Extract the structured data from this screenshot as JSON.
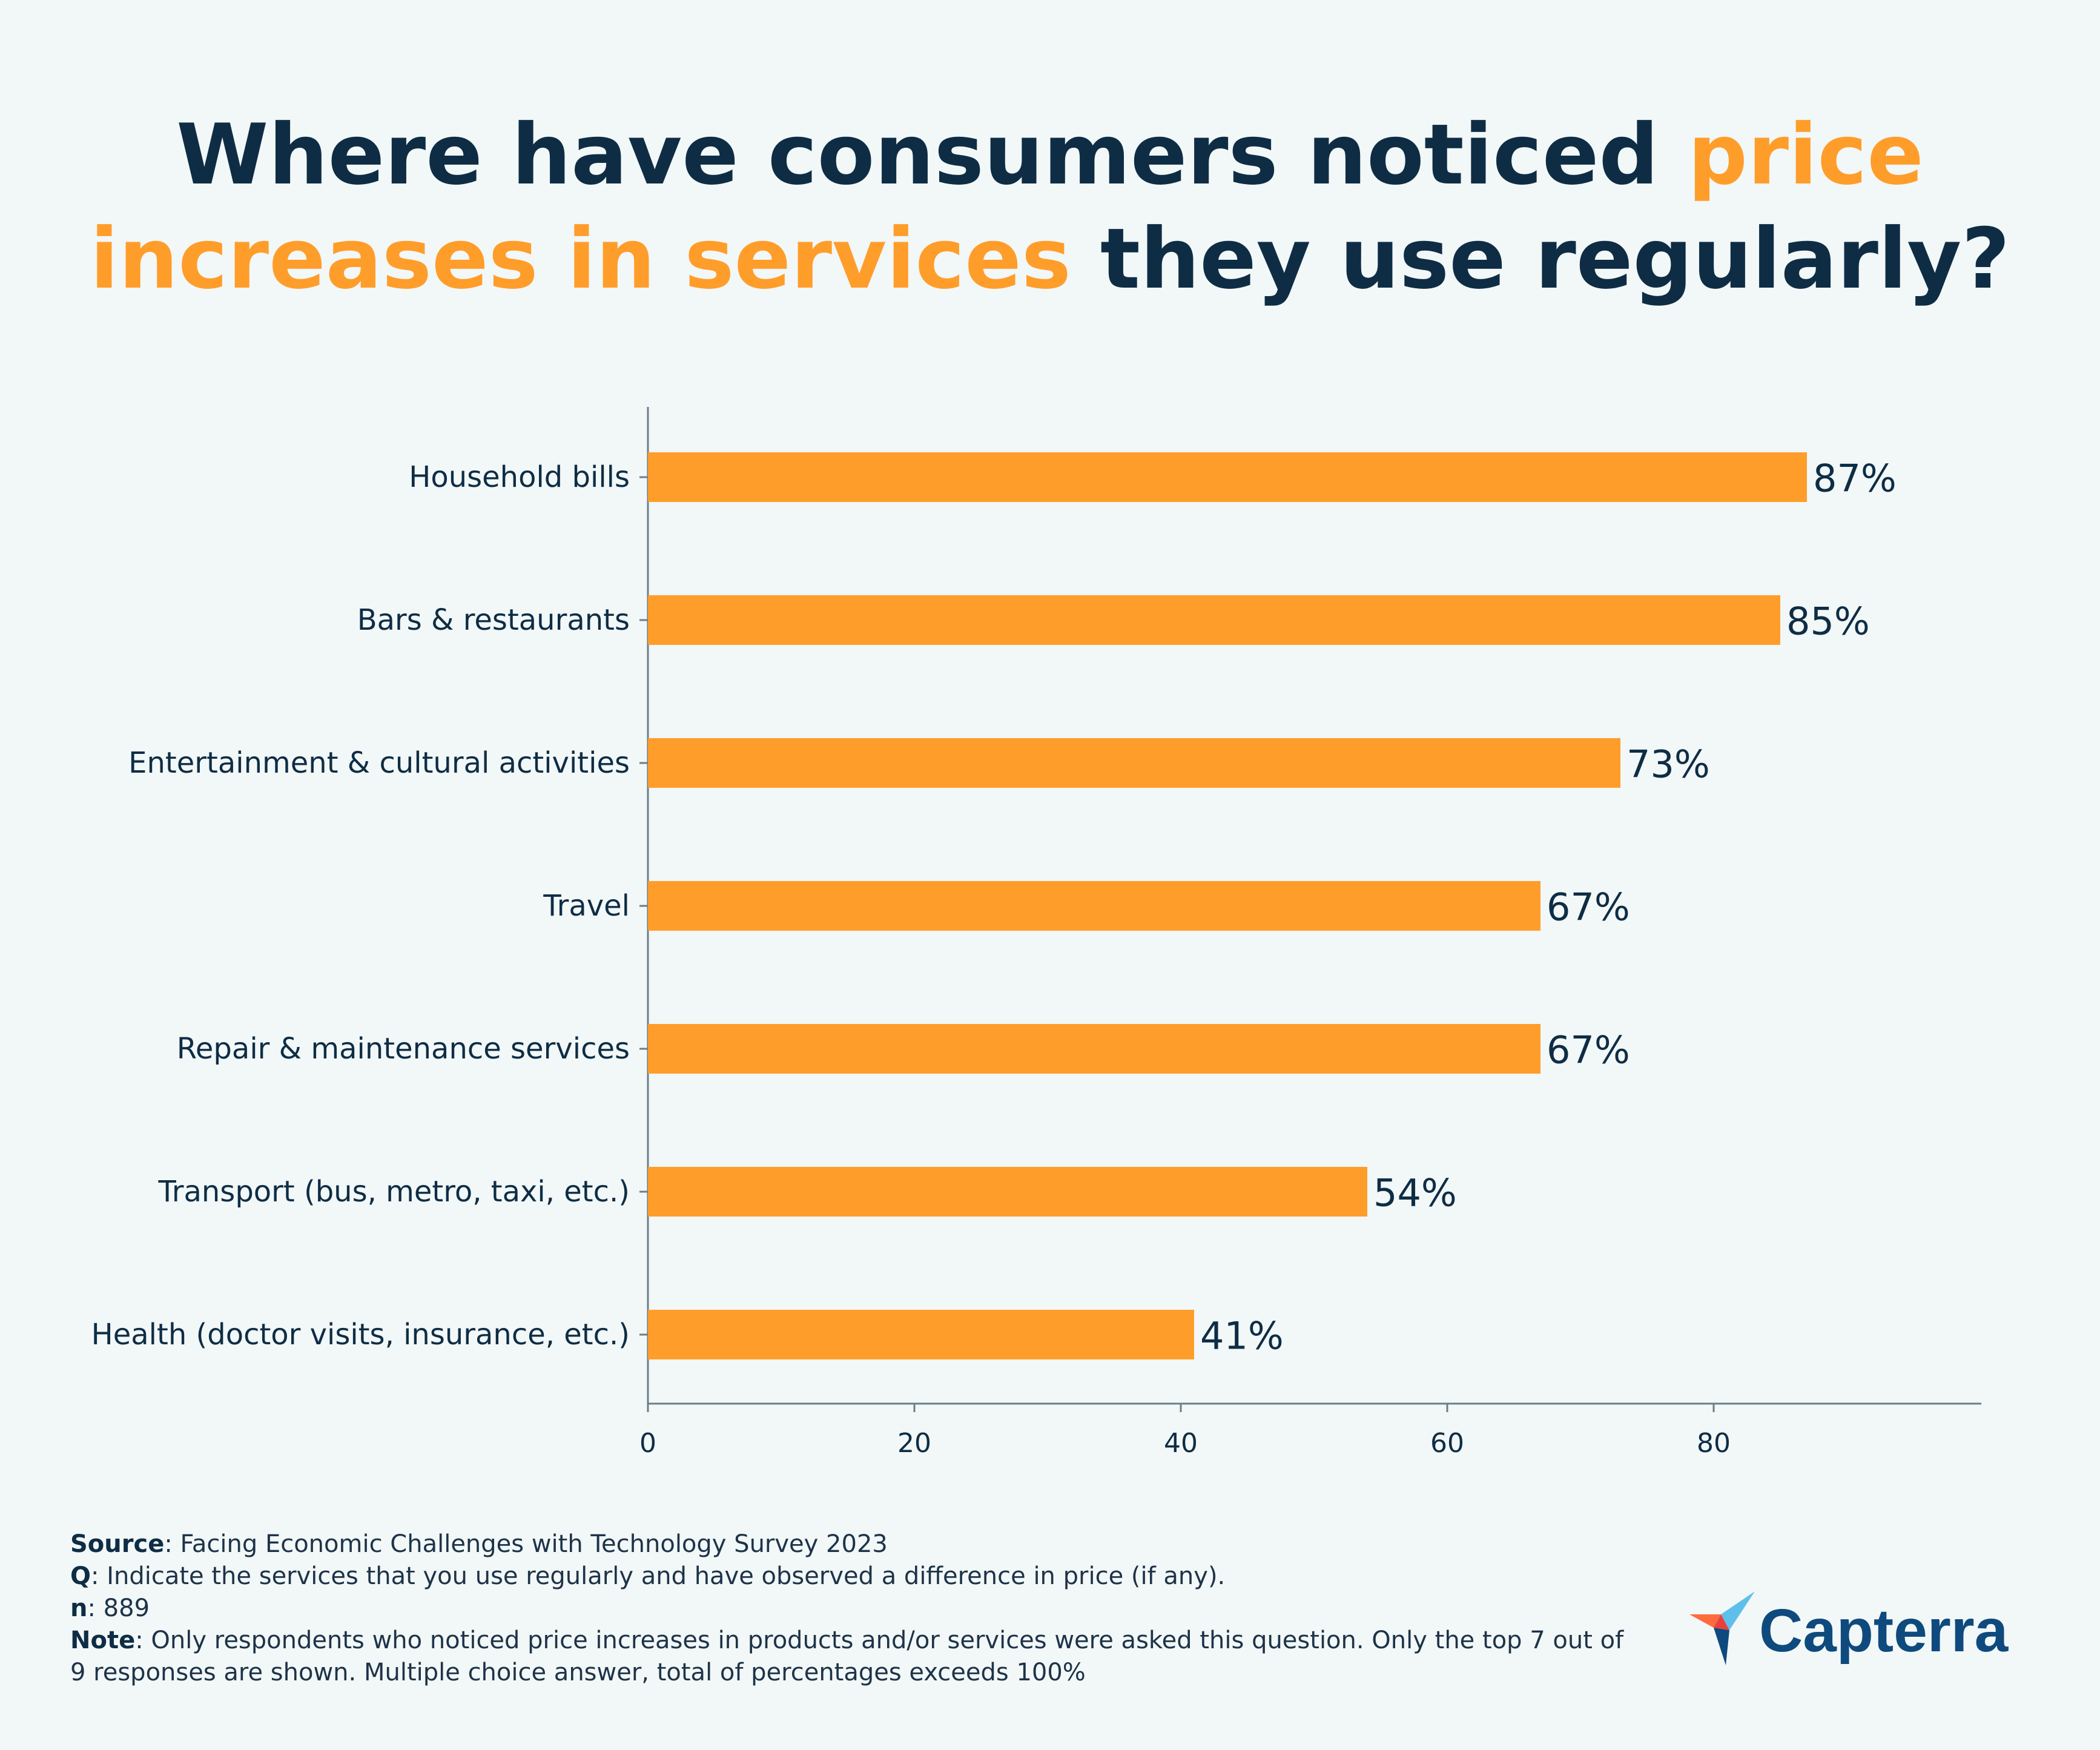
{
  "title": {
    "part1": "Where have consumers noticed ",
    "highlight1": "price",
    "highlight2": "increases in services",
    "part2": " they use regularly?"
  },
  "colors": {
    "accent": "#ff9d2a",
    "text": "#0e2d45",
    "axis": "#6b7e8c",
    "background": "#f2f7f7"
  },
  "chart_data": {
    "type": "bar",
    "orientation": "horizontal",
    "categories": [
      "Household bills",
      "Bars & restaurants",
      "Entertainment & cultural activities",
      "Travel",
      "Repair & maintenance services",
      "Transport (bus, metro, taxi, etc.)",
      "Health (doctor visits, insurance, etc.)"
    ],
    "values": [
      87,
      85,
      73,
      67,
      67,
      54,
      41
    ],
    "value_labels": [
      "87%",
      "85%",
      "73%",
      "67%",
      "67%",
      "54%",
      "41%"
    ],
    "xticks": [
      0,
      20,
      40,
      60,
      80
    ],
    "xlim": [
      0,
      100
    ],
    "xlabel": "",
    "ylabel": "",
    "grid": false
  },
  "footer": {
    "source_label": "Source",
    "source_text": ": Facing Economic Challenges with Technology Survey 2023",
    "q_label": "Q",
    "q_text": ": Indicate the services that you use regularly and have observed a difference in price (if any).",
    "n_label": "n",
    "n_text": ": 889",
    "note_label": "Note",
    "note_text": ": Only respondents who noticed price increases in products and/or services were asked this question. Only the top 7 out of 9 responses are shown. Multiple choice answer, total of percentages exceeds 100%"
  },
  "brand": {
    "name": "Capterra",
    "icon": "capterra-logo-icon"
  }
}
